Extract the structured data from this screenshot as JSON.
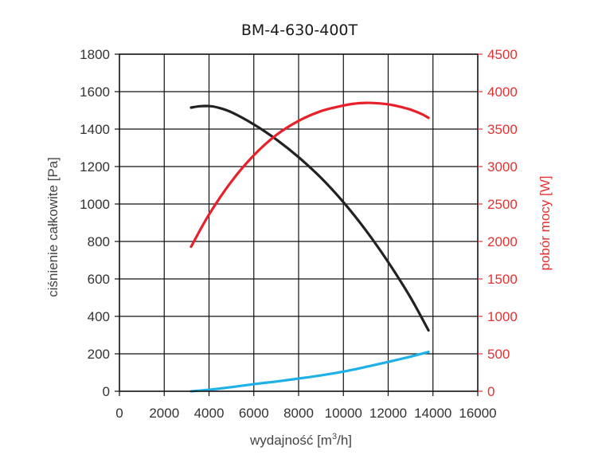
{
  "chart_data": {
    "type": "line",
    "title": "BM-4-630-400T",
    "xlabel": "wydajność [m3/h]",
    "xlabel_main": "wydajność [m",
    "xlabel_sup": "3",
    "xlabel_end": "/h]",
    "ylabel": "ciśnienie całkowite [Pa]",
    "y2label": "pobór mocy [W]",
    "xlim": [
      0,
      16000
    ],
    "ylim": [
      0,
      1800
    ],
    "y2lim": [
      0,
      4500
    ],
    "xticks": [
      "0",
      "2000",
      "4000",
      "6000",
      "8000",
      "10000",
      "12000",
      "14000",
      "16000"
    ],
    "yticks": [
      "0",
      "200",
      "400",
      "600",
      "800",
      "1000",
      "1200",
      "1400",
      "1600",
      "1800"
    ],
    "y2ticks": [
      "0",
      "500",
      "1000",
      "1500",
      "2000",
      "2500",
      "3000",
      "3500",
      "4000",
      "4500"
    ],
    "grid": true,
    "colors": {
      "pressure": "#222222",
      "power": "#e8202a",
      "secondary": "#1fb0e8",
      "right_axis": "#e53030"
    },
    "series": [
      {
        "axis": "left",
        "color": "#222222",
        "x": [
          3200,
          3600,
          4000,
          4400,
          5000,
          6000,
          7000,
          8000,
          9000,
          10000,
          11000,
          12000,
          13000,
          13800
        ],
        "y": [
          1515,
          1522,
          1523,
          1515,
          1490,
          1425,
          1345,
          1250,
          1140,
          1010,
          860,
          690,
          500,
          325
        ]
      },
      {
        "axis": "right",
        "color": "#e8202a",
        "x": [
          3200,
          4000,
          5000,
          6000,
          7000,
          8000,
          9000,
          10000,
          10500,
          11000,
          11500,
          12000,
          12500,
          13000,
          13500,
          13800
        ],
        "y": [
          1930,
          2360,
          2800,
          3150,
          3420,
          3610,
          3740,
          3815,
          3840,
          3850,
          3845,
          3830,
          3800,
          3760,
          3700,
          3650
        ]
      },
      {
        "axis": "left",
        "color": "#1fb0e8",
        "x": [
          3200,
          4000,
          5000,
          6000,
          7000,
          8000,
          9000,
          10000,
          11000,
          12000,
          13000,
          13800
        ],
        "y": [
          0,
          8,
          22,
          38,
          52,
          68,
          85,
          105,
          130,
          157,
          185,
          210
        ]
      }
    ]
  }
}
